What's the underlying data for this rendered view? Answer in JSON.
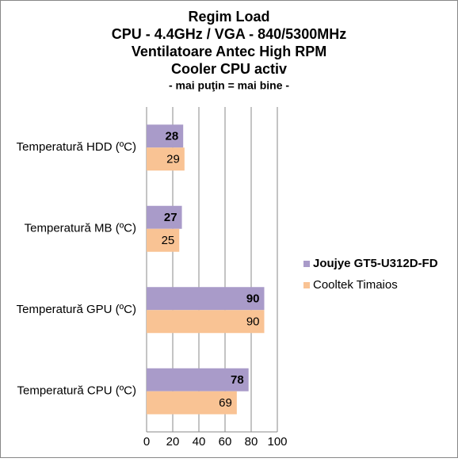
{
  "chart_data": {
    "type": "hbar",
    "title": [
      "Regim Load",
      "CPU - 4.4GHz / VGA - 840/5300MHz",
      "Ventilatoare Antec High RPM",
      "Cooler CPU activ"
    ],
    "subtitle": "- mai puţin = mai bine -",
    "categories": [
      "Temperatură  HDD (ºC)",
      "Temperatură  MB (ºC)",
      "Temperatură  GPU (ºC)",
      "Temperatură  CPU (ºC)"
    ],
    "series": [
      {
        "name": "Joujye GT5-U312D-FD",
        "color": "#a99bc9",
        "values": [
          28,
          27,
          90,
          78
        ]
      },
      {
        "name": "Cooltek Timaios",
        "color": "#f9c394",
        "values": [
          29,
          25,
          90,
          69
        ]
      }
    ],
    "xlim": [
      0,
      100
    ],
    "xticks": [
      0,
      20,
      40,
      60,
      80,
      100
    ],
    "grid": true,
    "legend": "right"
  }
}
